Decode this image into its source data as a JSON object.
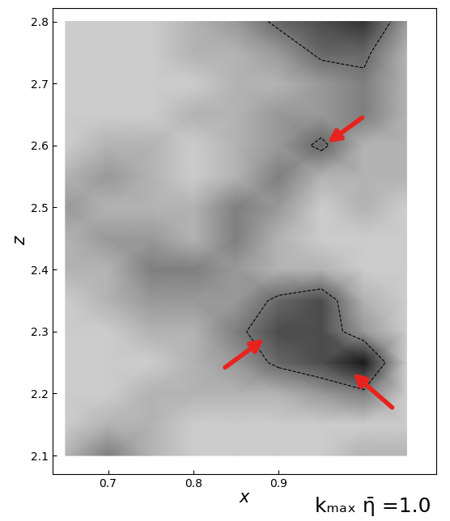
{
  "chart_data": {
    "type": "contour",
    "xlabel": "x",
    "ylabel": "z",
    "annotation": "kₘₐₓ η̄ =1.0",
    "xlim": [
      0.635,
      1.085
    ],
    "ylim": [
      2.07,
      2.822
    ],
    "xticks": [
      0.7,
      0.8,
      0.9
    ],
    "yticks": [
      2.1,
      2.2,
      2.3,
      2.4,
      2.5,
      2.6,
      2.7,
      2.8
    ],
    "x": [
      0.65,
      0.7,
      0.75,
      0.8,
      0.85,
      0.9,
      0.95,
      1.0,
      1.05
    ],
    "z": [
      2.1,
      2.15,
      2.2,
      2.25,
      2.3,
      2.35,
      2.4,
      2.45,
      2.5,
      2.55,
      2.6,
      2.65,
      2.7,
      2.75,
      2.8
    ],
    "cells": [
      [
        0.3,
        0.5,
        0.3,
        0.2,
        0.2,
        0.2,
        0.2,
        0.3,
        0.3
      ],
      [
        0.2,
        0.3,
        0.3,
        0.2,
        0.2,
        0.2,
        0.2,
        0.2,
        0.2
      ],
      [
        0.2,
        0.2,
        0.3,
        0.3,
        0.3,
        0.3,
        0.4,
        0.5,
        0.2
      ],
      [
        0.2,
        0.2,
        0.2,
        0.3,
        0.4,
        0.6,
        0.7,
        0.9,
        0.2
      ],
      [
        0.2,
        0.2,
        0.3,
        0.3,
        0.5,
        0.7,
        0.7,
        0.4,
        0.2
      ],
      [
        0.2,
        0.3,
        0.4,
        0.4,
        0.4,
        0.6,
        0.7,
        0.3,
        0.2
      ],
      [
        0.3,
        0.3,
        0.5,
        0.5,
        0.4,
        0.3,
        0.3,
        0.2,
        0.2
      ],
      [
        0.3,
        0.4,
        0.4,
        0.3,
        0.5,
        0.3,
        0.2,
        0.2,
        0.2
      ],
      [
        0.4,
        0.3,
        0.3,
        0.3,
        0.5,
        0.4,
        0.2,
        0.3,
        0.2
      ],
      [
        0.3,
        0.4,
        0.3,
        0.2,
        0.3,
        0.5,
        0.3,
        0.3,
        0.3
      ],
      [
        0.2,
        0.3,
        0.3,
        0.2,
        0.3,
        0.4,
        0.6,
        0.3,
        0.3
      ],
      [
        0.2,
        0.2,
        0.2,
        0.3,
        0.3,
        0.4,
        0.4,
        0.5,
        0.3
      ],
      [
        0.2,
        0.2,
        0.2,
        0.2,
        0.3,
        0.3,
        0.4,
        0.5,
        0.3
      ],
      [
        0.2,
        0.2,
        0.2,
        0.3,
        0.3,
        0.4,
        0.6,
        0.6,
        0.3
      ],
      [
        0.2,
        0.2,
        0.2,
        0.3,
        0.4,
        0.6,
        0.7,
        0.8,
        0.4
      ]
    ],
    "clim": [
      0,
      1
    ],
    "contour_levels": [
      0.55
    ],
    "arrows": [
      {
        "x": 0.955,
        "z": 2.602
      },
      {
        "x": 0.885,
        "z": 2.29
      },
      {
        "x": 0.985,
        "z": 2.235
      }
    ],
    "color": "#e8231e"
  }
}
